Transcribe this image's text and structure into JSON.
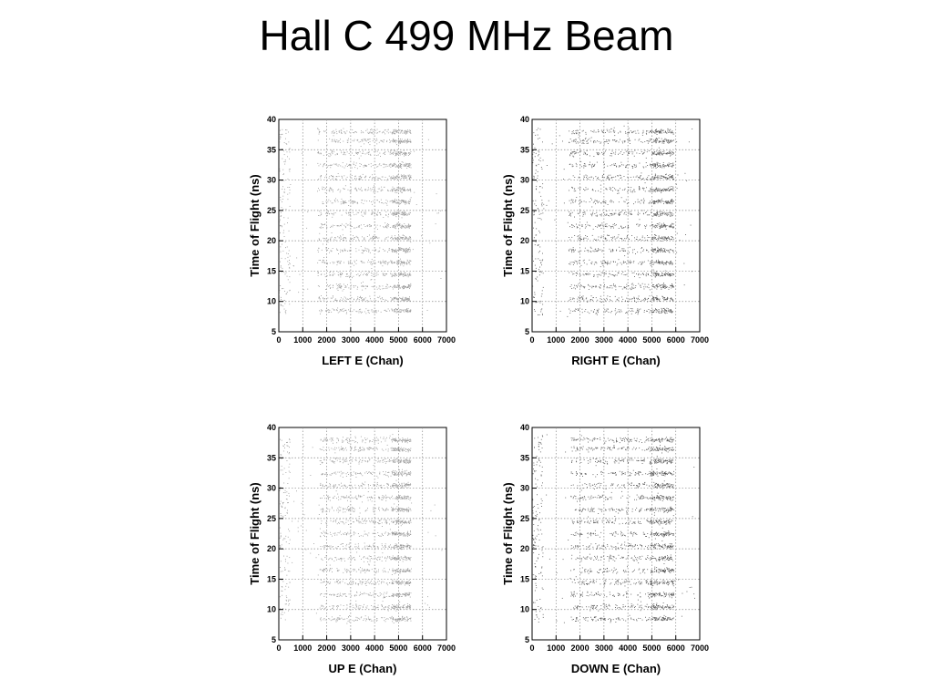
{
  "slide": {
    "title": "Hall C 499 MHz Beam"
  },
  "style": {
    "light_point_color": "#9a9a9a",
    "dark_point_color": "#555555",
    "grid_color": "#888888"
  },
  "chart_data": [
    {
      "type": "scatter",
      "xlabel": "LEFT E (Chan)",
      "ylabel": "Time of Flight (ns)",
      "xlim": [
        0,
        7000
      ],
      "ylim": [
        5,
        40
      ],
      "xticks": [
        0,
        1000,
        2000,
        3000,
        4000,
        5000,
        6000,
        7000
      ],
      "yticks": [
        5,
        10,
        15,
        20,
        25,
        30,
        35,
        40
      ],
      "grid": true,
      "point_shade": "light",
      "band_x_range": [
        1600,
        5500
      ],
      "band_y_centers": [
        8.5,
        10.5,
        12.5,
        14.5,
        16.5,
        18.5,
        20.5,
        22.5,
        24.5,
        26.5,
        28.5,
        30.5,
        32.5,
        34.5,
        36.5,
        38.0
      ],
      "band_dense_x_range": [
        4700,
        5500
      ]
    },
    {
      "type": "scatter",
      "xlabel": "RIGHT E (Chan)",
      "ylabel": "Time of Flight (ns)",
      "xlim": [
        0,
        7000
      ],
      "ylim": [
        5,
        40
      ],
      "xticks": [
        0,
        1000,
        2000,
        3000,
        4000,
        5000,
        6000,
        7000
      ],
      "yticks": [
        5,
        10,
        15,
        20,
        25,
        30,
        35,
        40
      ],
      "grid": true,
      "point_shade": "dark",
      "band_x_range": [
        1500,
        5900
      ],
      "band_y_centers": [
        8.5,
        10.5,
        12.5,
        14.5,
        16.5,
        18.5,
        20.5,
        22.5,
        24.5,
        26.5,
        28.5,
        30.5,
        32.5,
        34.5,
        36.5,
        38.0
      ],
      "band_dense_x_range": [
        5000,
        5900
      ]
    },
    {
      "type": "scatter",
      "xlabel": "UP E (Chan)",
      "ylabel": "Time of Flight (ns)",
      "xlim": [
        0,
        7000
      ],
      "ylim": [
        5,
        40
      ],
      "xticks": [
        0,
        1000,
        2000,
        3000,
        4000,
        5000,
        6000,
        7000
      ],
      "yticks": [
        5,
        10,
        15,
        20,
        25,
        30,
        35,
        40
      ],
      "grid": true,
      "point_shade": "light",
      "band_x_range": [
        1700,
        5500
      ],
      "band_y_centers": [
        8.5,
        10.5,
        12.5,
        14.5,
        16.5,
        18.5,
        20.5,
        22.5,
        24.5,
        26.5,
        28.5,
        30.5,
        32.5,
        34.5,
        36.5,
        38.0
      ],
      "band_dense_x_range": [
        4700,
        5500
      ]
    },
    {
      "type": "scatter",
      "xlabel": "DOWN E (Chan)",
      "ylabel": "Time of Flight (ns)",
      "xlim": [
        0,
        7000
      ],
      "ylim": [
        5,
        40
      ],
      "xticks": [
        0,
        1000,
        2000,
        3000,
        4000,
        5000,
        6000,
        7000
      ],
      "yticks": [
        5,
        10,
        15,
        20,
        25,
        30,
        35,
        40
      ],
      "grid": true,
      "point_shade": "dark",
      "band_x_range": [
        1600,
        5900
      ],
      "band_y_centers": [
        8.5,
        10.5,
        12.5,
        14.5,
        16.5,
        18.5,
        20.5,
        22.5,
        24.5,
        26.5,
        28.5,
        30.5,
        32.5,
        34.5,
        36.5,
        38.0
      ],
      "band_dense_x_range": [
        4900,
        5900
      ]
    }
  ]
}
